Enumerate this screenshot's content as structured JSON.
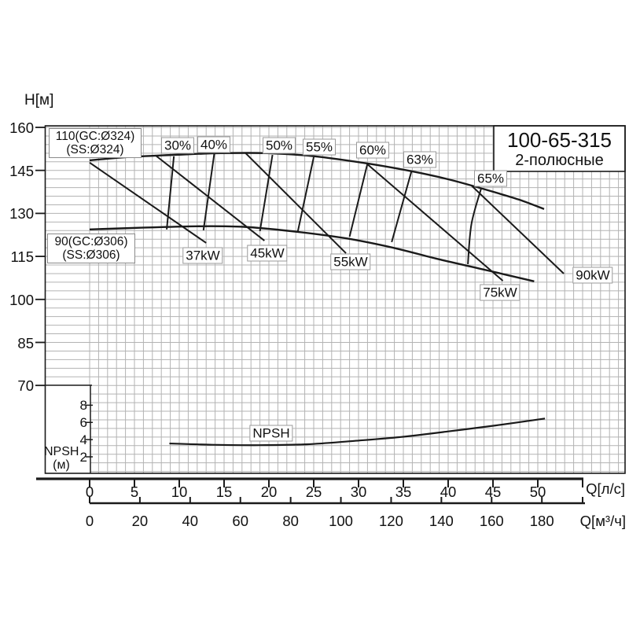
{
  "title_box": {
    "model": "100-65-315",
    "poles": "2-полюсные"
  },
  "colors": {
    "ink": "#1a1a1a",
    "grid": "#b3b3b3",
    "chip_border": "#9a9a9a",
    "background": "#ffffff"
  },
  "chart_data": {
    "type": "line",
    "title": "100-65-315",
    "subtitle": "2-полюсные",
    "grid": "on",
    "y_axis": {
      "label": "H[м]",
      "ticks": [
        160,
        145,
        130,
        115,
        100,
        85,
        70
      ],
      "min": 39,
      "max": 160
    },
    "x_axis_primary": {
      "label": "Q[л/с]",
      "ticks": [
        0,
        5,
        10,
        15,
        20,
        25,
        30,
        35,
        40,
        45,
        50
      ],
      "min": 0,
      "max": 55
    },
    "x_axis_secondary": {
      "label": "Q[м³/ч]",
      "ticks": [
        0,
        20,
        40,
        60,
        80,
        100,
        120,
        140,
        160,
        180
      ],
      "min": 0,
      "max": 196
    },
    "npsh_axis": {
      "label": "NPSH",
      "unit": "(м)",
      "ticks": [
        8,
        6,
        4,
        2
      ]
    },
    "series": [
      {
        "name": "impeller-110",
        "label_lines": [
          "110(GC:Ø324)",
          "(SS:Ø324)"
        ],
        "points": [
          [
            0,
            148.5
          ],
          [
            4,
            149.6
          ],
          [
            9.3,
            150.4
          ],
          [
            14.6,
            151
          ],
          [
            19.8,
            151
          ],
          [
            25.1,
            149.9
          ],
          [
            31,
            147.4
          ],
          [
            35.6,
            144.9
          ],
          [
            40,
            141.9
          ],
          [
            44.4,
            138.1
          ],
          [
            47.9,
            134.8
          ],
          [
            50.7,
            131.5
          ]
        ]
      },
      {
        "name": "impeller-90",
        "label_lines": [
          "90(GC:Ø306)",
          "(SS:Ø306)"
        ],
        "points": [
          [
            0,
            124.4
          ],
          [
            5.8,
            125
          ],
          [
            11.9,
            125.5
          ],
          [
            17.2,
            125.3
          ],
          [
            22.5,
            123.8
          ],
          [
            28.6,
            121.3
          ],
          [
            33.9,
            118
          ],
          [
            39.1,
            113.9
          ],
          [
            44.4,
            110.1
          ],
          [
            49.6,
            106.3
          ]
        ]
      }
    ],
    "efficiency_lines": [
      {
        "label": "30%",
        "points": [
          [
            9.4,
            149.9
          ],
          [
            8.6,
            124.4
          ]
        ]
      },
      {
        "label": "40%",
        "points": [
          [
            13.9,
            150.7
          ],
          [
            12.7,
            124.1
          ]
        ]
      },
      {
        "label": "50%",
        "points": [
          [
            20.4,
            150.4
          ],
          [
            19,
            123.8
          ]
        ]
      },
      {
        "label": "55%",
        "points": [
          [
            25,
            149.6
          ],
          [
            23.2,
            123.3
          ]
        ]
      },
      {
        "label": "60%",
        "points": [
          [
            31,
            147.4
          ],
          [
            29,
            121.9
          ]
        ]
      },
      {
        "label": "63%",
        "points": [
          [
            35.9,
            144.6
          ],
          [
            33.7,
            120
          ]
        ]
      },
      {
        "label": "65%",
        "points": [
          [
            43.7,
            138.9
          ],
          [
            42.6,
            126.3
          ],
          [
            42.2,
            112.3
          ]
        ]
      }
    ],
    "power_lines": [
      {
        "label": "37kW",
        "points": [
          [
            0,
            147.7
          ],
          [
            13,
            119.7
          ]
        ]
      },
      {
        "label": "45kW",
        "points": [
          [
            7.4,
            150.1
          ],
          [
            19.5,
            120.5
          ]
        ]
      },
      {
        "label": "55kW",
        "points": [
          [
            17.4,
            151
          ],
          [
            28.6,
            116.1
          ]
        ]
      },
      {
        "label": "75kW",
        "points": [
          [
            31,
            147.1
          ],
          [
            46.1,
            106.5
          ]
        ]
      },
      {
        "label": "90kW",
        "points": [
          [
            42.6,
            139.7
          ],
          [
            52.9,
            109
          ]
        ]
      }
    ],
    "npsh_curve": {
      "label": "NPSH",
      "y_unit": "м",
      "points": [
        [
          8.9,
          3.55
        ],
        [
          13.7,
          3.4
        ],
        [
          18.9,
          3.35
        ],
        [
          24.2,
          3.45
        ],
        [
          29.5,
          3.85
        ],
        [
          34.7,
          4.3
        ],
        [
          40,
          4.95
        ],
        [
          45.3,
          5.65
        ],
        [
          50.8,
          6.45
        ]
      ]
    }
  }
}
